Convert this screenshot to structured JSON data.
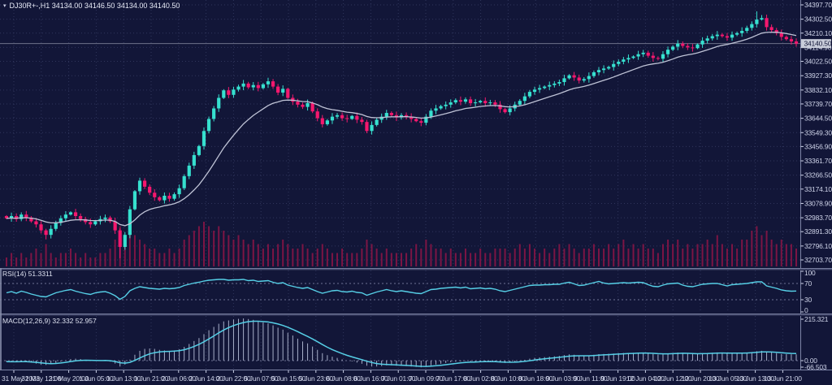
{
  "window": {
    "title": "DJ30R+-,H1 34134.00 34146.50 34134.00 34140.50",
    "symbol": "DJ30R+-",
    "timeframe": "H1",
    "menu_icon": "▾"
  },
  "colors": {
    "background": "#121638",
    "grid": "#30355c",
    "bull": "#36e0cf",
    "bear": "#f5186e",
    "ma_line": "#bfc3d6",
    "volume": "#7c1544",
    "indicator_line": "#56cfe6",
    "macd_histogram": "#a7afc9",
    "axis_text": "#ced3e8",
    "level_line": "#6d7394",
    "separator": "#7d84a6",
    "price_tag_bg": "#c9cdda",
    "price_tag_text": "#121638",
    "bid_line": "#c9cdda"
  },
  "indicators": {
    "rsi": {
      "label": "RSI(14) 51.3311",
      "period": 14,
      "current": 51.3311
    },
    "macd": {
      "label": "MACD(12,26,9) 32.332 52.957",
      "params": "12,26,9",
      "current_main": 32.332,
      "current_signal": 52.957
    }
  },
  "chart_data": {
    "type": "candlestick",
    "symbol": "DJ30R+-",
    "timeframe": "H1",
    "current_bar": {
      "open": 34134.0,
      "high": 34146.5,
      "low": 34134.0,
      "close": 34140.5
    },
    "current_price_label": "34140.50",
    "ylim": [
      32703.7,
      34397.7
    ],
    "price_ticks": [
      34397.7,
      34302.5,
      34210.1,
      34114.9,
      34022.5,
      33927.3,
      33832.1,
      33739.7,
      33644.5,
      33549.3,
      33456.9,
      33361.7,
      33266.5,
      33174.1,
      33078.9,
      32983.7,
      32891.3,
      32796.1,
      32703.7
    ],
    "x_labels": [
      "31 May 2023",
      "31 May 12:00",
      "31 May 20:00",
      "1 Jun 05:00",
      "1 Jun 13:00",
      "1 Jun 21:00",
      "2 Jun 06:00",
      "2 Jun 14:00",
      "2 Jun 22:00",
      "5 Jun 07:00",
      "5 Jun 15:00",
      "5 Jun 23:00",
      "6 Jun 08:00",
      "6 Jun 16:00",
      "7 Jun 01:00",
      "7 Jun 09:00",
      "7 Jun 17:00",
      "8 Jun 02:00",
      "8 Jun 10:00",
      "8 Jun 18:00",
      "9 Jun 03:00",
      "9 Jun 11:00",
      "9 Jun 19:00",
      "12 Jun 04:00",
      "12 Jun 12:00",
      "12 Jun 20:00",
      "13 Jun 05:00",
      "13 Jun 13:00",
      "13 Jun 21:00"
    ],
    "closes": [
      32980,
      32995,
      32975,
      33005,
      32985,
      32960,
      32940,
      32900,
      32870,
      32910,
      32950,
      32980,
      33005,
      33020,
      32995,
      32975,
      32955,
      32940,
      32960,
      32975,
      32985,
      32960,
      32900,
      32790,
      32870,
      33040,
      33160,
      33230,
      33190,
      33150,
      33120,
      33100,
      33130,
      33110,
      33140,
      33180,
      33260,
      33330,
      33400,
      33460,
      33560,
      33640,
      33710,
      33780,
      33830,
      33800,
      33835,
      33855,
      33875,
      33850,
      33865,
      33845,
      33870,
      33890,
      33855,
      33815,
      33840,
      33780,
      33755,
      33735,
      33720,
      33745,
      33690,
      33645,
      33605,
      33630,
      33655,
      33665,
      33645,
      33640,
      33660,
      33635,
      33620,
      33560,
      33600,
      33635,
      33655,
      33680,
      33665,
      33650,
      33665,
      33655,
      33640,
      33625,
      33615,
      33655,
      33695,
      33710,
      33725,
      33735,
      33750,
      33765,
      33755,
      33770,
      33745,
      33750,
      33760,
      33745,
      33750,
      33735,
      33705,
      33685,
      33710,
      33735,
      33760,
      33790,
      33820,
      33835,
      33845,
      33855,
      33865,
      33875,
      33885,
      33910,
      33930,
      33915,
      33895,
      33905,
      33925,
      33950,
      33965,
      33975,
      33985,
      34005,
      34020,
      34035,
      34045,
      34055,
      34070,
      34080,
      34060,
      34045,
      34040,
      34070,
      34100,
      34120,
      34140,
      34125,
      34115,
      34110,
      34135,
      34160,
      34175,
      34190,
      34200,
      34190,
      34180,
      34200,
      34210,
      34225,
      34245,
      34270,
      34300,
      34310,
      34250,
      34230,
      34210,
      34185,
      34170,
      34155,
      34140.5
    ],
    "high_overrides": {
      "27": 33250,
      "152": 34355,
      "153": 34330
    },
    "low_overrides": {
      "8": 32840,
      "23": 32715
    },
    "volumes": [
      2,
      3,
      2,
      3,
      2,
      3,
      4,
      3,
      5,
      3,
      2,
      3,
      3,
      4,
      3,
      2,
      3,
      2,
      2,
      3,
      3,
      4,
      6,
      9,
      7,
      8,
      7,
      6,
      5,
      4,
      4,
      3,
      3,
      4,
      3,
      4,
      6,
      7,
      8,
      9,
      10,
      9,
      8,
      9,
      8,
      7,
      6,
      7,
      6,
      5,
      6,
      5,
      4,
      5,
      4,
      5,
      6,
      5,
      4,
      4,
      5,
      4,
      3,
      4,
      5,
      4,
      3,
      3,
      4,
      3,
      3,
      3,
      4,
      6,
      5,
      4,
      3,
      4,
      3,
      3,
      3,
      3,
      4,
      5,
      4,
      6,
      5,
      4,
      4,
      3,
      4,
      3,
      3,
      4,
      3,
      3,
      4,
      3,
      3,
      4,
      4,
      4,
      3,
      4,
      5,
      4,
      5,
      4,
      3,
      4,
      3,
      4,
      5,
      4,
      5,
      4,
      3,
      4,
      4,
      5,
      4,
      4,
      5,
      4,
      5,
      6,
      4,
      5,
      4,
      5,
      4,
      4,
      3,
      5,
      6,
      5,
      6,
      4,
      5,
      4,
      5,
      5,
      6,
      5,
      7,
      5,
      4,
      5,
      4,
      6,
      6,
      8,
      9,
      7,
      8,
      6,
      5,
      6,
      5,
      5,
      4
    ],
    "rsi_levels": [
      100,
      70,
      30,
      0
    ],
    "rsi_values": [
      47,
      50,
      46,
      51,
      48,
      44,
      41,
      38,
      37,
      42,
      47,
      50,
      53,
      55,
      51,
      48,
      45,
      43,
      47,
      49,
      50,
      46,
      40,
      31,
      38,
      52,
      58,
      62,
      60,
      58,
      57,
      56,
      58,
      57,
      58,
      60,
      65,
      68,
      71,
      73,
      76,
      78,
      79,
      80,
      80,
      78,
      79,
      79,
      80,
      77,
      78,
      75,
      76,
      77,
      73,
      70,
      72,
      66,
      63,
      60,
      58,
      60,
      55,
      50,
      46,
      49,
      52,
      53,
      50,
      49,
      51,
      48,
      47,
      41,
      45,
      49,
      52,
      55,
      52,
      50,
      52,
      50,
      48,
      46,
      45,
      50,
      55,
      56,
      58,
      59,
      60,
      61,
      59,
      61,
      57,
      58,
      59,
      57,
      58,
      56,
      52,
      50,
      53,
      56,
      59,
      62,
      65,
      66,
      66,
      67,
      67,
      68,
      68,
      71,
      73,
      69,
      65,
      66,
      69,
      72,
      75,
      71,
      69,
      70,
      71,
      72,
      71,
      72,
      73,
      72,
      67,
      63,
      62,
      66,
      69,
      70,
      71,
      66,
      63,
      62,
      65,
      68,
      69,
      70,
      70,
      67,
      64,
      67,
      68,
      69,
      70,
      72,
      74,
      74,
      64,
      61,
      58,
      54,
      52,
      51,
      51.33
    ],
    "macd_axis_labels": [
      "215.321",
      "0.00",
      "-66.503"
    ],
    "macd_hist": [
      -5,
      -8,
      -6,
      -4,
      -6,
      -10,
      -15,
      -20,
      -22,
      -18,
      -12,
      -5,
      2,
      8,
      10,
      8,
      4,
      0,
      -2,
      0,
      2,
      -5,
      -15,
      -30,
      -20,
      5,
      30,
      50,
      60,
      62,
      60,
      55,
      52,
      50,
      52,
      58,
      70,
      85,
      100,
      115,
      135,
      155,
      172,
      188,
      200,
      205,
      210,
      213,
      215,
      212,
      208,
      200,
      195,
      190,
      180,
      168,
      158,
      142,
      128,
      112,
      98,
      88,
      72,
      55,
      38,
      28,
      20,
      14,
      6,
      0,
      -4,
      -10,
      -16,
      -26,
      -30,
      -30,
      -28,
      -24,
      -24,
      -26,
      -26,
      -28,
      -30,
      -32,
      -34,
      -30,
      -24,
      -20,
      -16,
      -12,
      -8,
      -5,
      -4,
      -2,
      -4,
      -4,
      -3,
      -4,
      -4,
      -6,
      -10,
      -12,
      -10,
      -6,
      -2,
      4,
      10,
      14,
      16,
      18,
      20,
      22,
      24,
      28,
      32,
      30,
      26,
      24,
      26,
      30,
      33,
      34,
      35,
      36,
      38,
      39,
      39,
      40,
      41,
      41,
      38,
      34,
      31,
      32,
      35,
      38,
      41,
      39,
      36,
      33,
      33,
      36,
      38,
      40,
      42,
      40,
      37,
      37,
      38,
      39,
      41,
      44,
      48,
      50,
      46,
      42,
      38,
      34,
      33,
      32.5,
      32.332
    ]
  }
}
